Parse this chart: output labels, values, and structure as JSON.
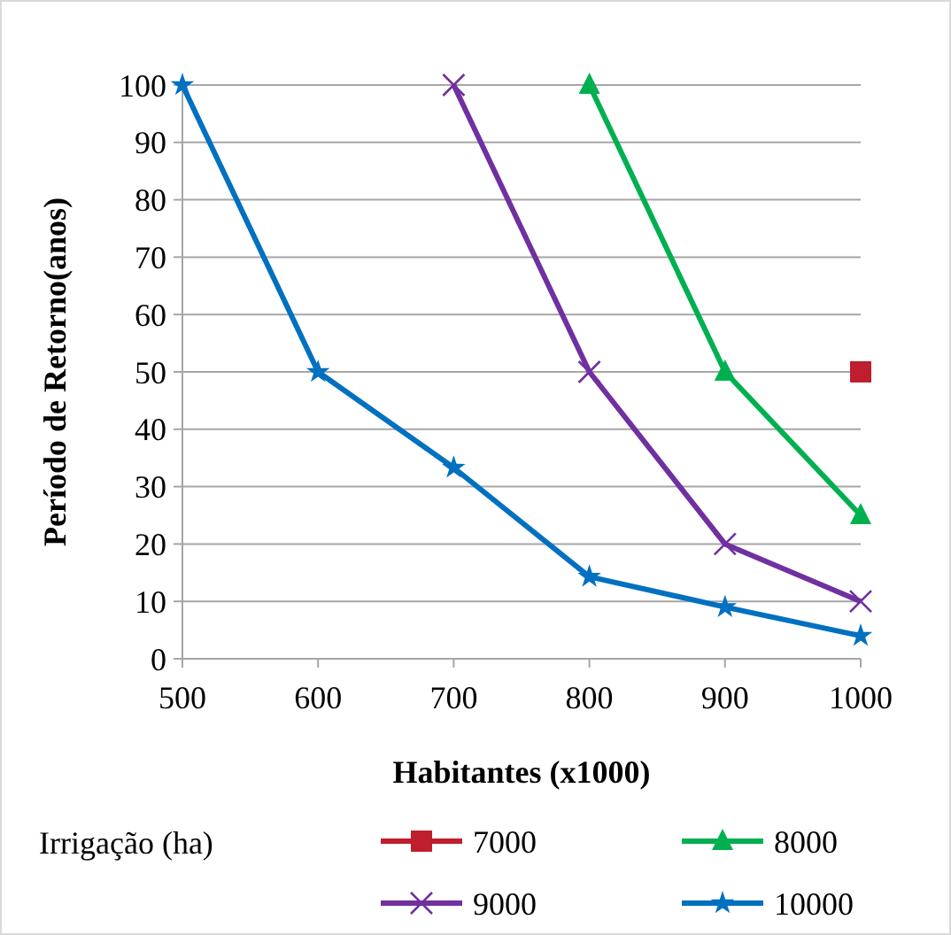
{
  "chart_data": {
    "type": "line",
    "xlabel": "Habitantes (x1000)",
    "ylabel": "Período de Retorno(anos)",
    "legend_title": "Irrigação (ha)",
    "legend": "bottom",
    "grid": "y",
    "xlim": [
      500,
      1000
    ],
    "xticks": [
      500,
      600,
      700,
      800,
      900,
      1000
    ],
    "ylim": [
      0,
      100
    ],
    "yticks": [
      0,
      10,
      20,
      30,
      40,
      50,
      60,
      70,
      80,
      90,
      100
    ],
    "series": [
      {
        "name": "7000",
        "color": "#be1e2d",
        "marker": "square",
        "x": [
          1000
        ],
        "values": [
          50
        ]
      },
      {
        "name": "8000",
        "color": "#00b050",
        "marker": "triangle",
        "x": [
          800,
          900,
          1000
        ],
        "values": [
          100,
          50,
          25
        ]
      },
      {
        "name": "9000",
        "color": "#7030a0",
        "marker": "cross",
        "x": [
          700,
          800,
          900,
          1000
        ],
        "values": [
          100,
          50,
          20,
          10
        ]
      },
      {
        "name": "10000",
        "color": "#0070c0",
        "marker": "star",
        "x": [
          500,
          600,
          700,
          800,
          900,
          1000
        ],
        "values": [
          100,
          50,
          33.3,
          14.3,
          9,
          4
        ]
      }
    ]
  }
}
